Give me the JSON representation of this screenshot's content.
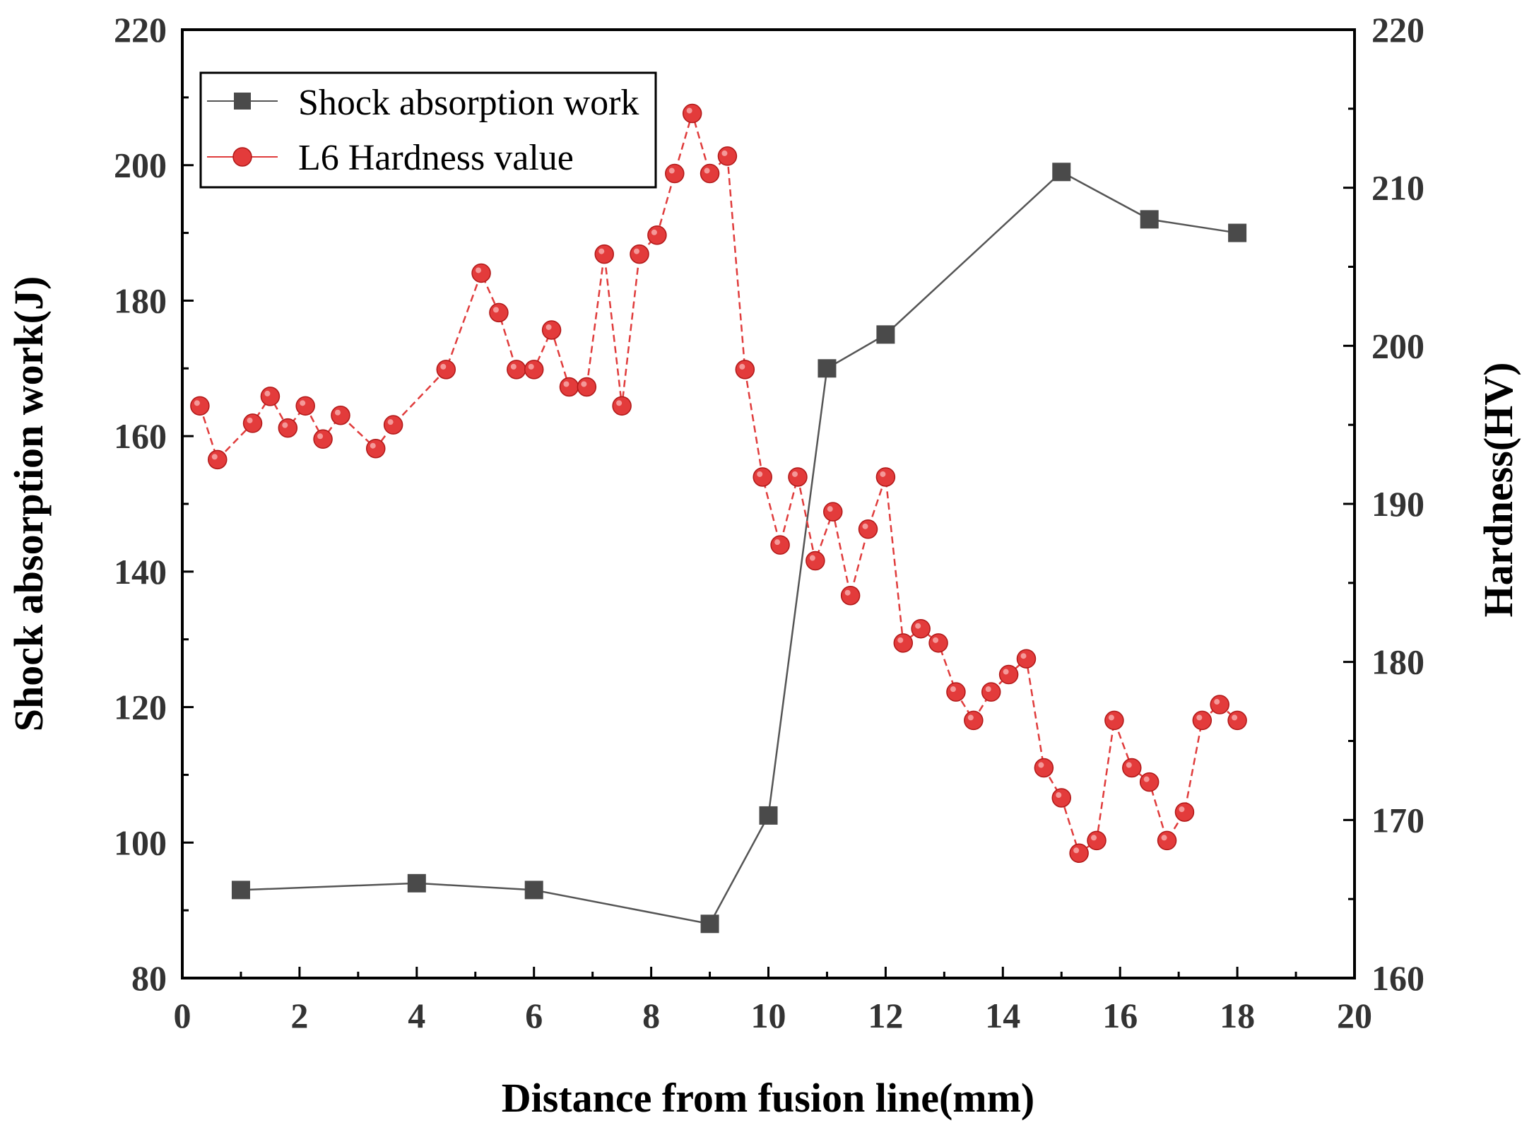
{
  "chart_data": {
    "type": "line",
    "title": "",
    "xlabel": "Distance from fusion line(mm)",
    "ylabel_left": "Shock absorption work(J)",
    "ylabel_right": "Hardness(HV)",
    "xlim": [
      0,
      20
    ],
    "ylim_left": [
      80,
      220
    ],
    "ylim_right": [
      160,
      220
    ],
    "x_ticks": [
      0,
      2,
      4,
      6,
      8,
      10,
      12,
      14,
      16,
      18,
      20
    ],
    "y_left_ticks": [
      80,
      100,
      120,
      140,
      160,
      180,
      200,
      220
    ],
    "y_right_ticks": [
      160,
      170,
      180,
      190,
      200,
      210,
      220
    ],
    "grid": false,
    "legend_position": "top-left",
    "colors": {
      "shock": "#555555",
      "shock_marker": "#4a4a4a",
      "hardness": "#e03c3c",
      "hardness_marker": "#e33b3b",
      "axis": "#000000"
    },
    "series": [
      {
        "name": "Shock absorption work",
        "axis": "left",
        "marker": "square",
        "x": [
          1,
          4,
          6,
          9,
          10,
          11,
          12,
          15,
          16.5,
          18
        ],
        "y": [
          93,
          94,
          93,
          88,
          104,
          170,
          175,
          199,
          192,
          190
        ]
      },
      {
        "name": "L6 Hardness value",
        "axis": "right",
        "marker": "circle",
        "x": [
          0.3,
          0.6,
          1.2,
          1.5,
          1.8,
          2.1,
          2.4,
          2.7,
          3.3,
          3.6,
          4.5,
          5.1,
          5.4,
          5.7,
          6.0,
          6.3,
          6.6,
          6.9,
          7.2,
          7.5,
          7.8,
          8.1,
          8.4,
          8.7,
          9.0,
          9.3,
          9.6,
          9.9,
          10.2,
          10.5,
          10.8,
          11.1,
          11.4,
          11.7,
          12.0,
          12.3,
          12.6,
          12.9,
          13.2,
          13.5,
          13.8,
          14.1,
          14.4,
          14.7,
          15.0,
          15.3,
          15.6,
          15.9,
          16.2,
          16.5,
          16.8,
          17.1,
          17.4,
          17.7,
          18.0
        ],
        "y": [
          196.2,
          192.8,
          195.1,
          196.8,
          194.8,
          196.2,
          194.1,
          195.6,
          193.5,
          195.0,
          198.5,
          204.6,
          202.1,
          198.5,
          198.5,
          201.0,
          197.4,
          197.4,
          205.8,
          196.2,
          205.8,
          207.0,
          210.9,
          214.7,
          210.9,
          212.0,
          198.5,
          191.7,
          187.4,
          191.7,
          186.4,
          189.5,
          184.2,
          188.4,
          191.7,
          181.2,
          182.1,
          181.2,
          178.1,
          176.3,
          178.1,
          179.2,
          180.2,
          173.3,
          171.4,
          167.9,
          168.7,
          176.3,
          173.3,
          172.4,
          168.7,
          170.5,
          176.3,
          177.3,
          176.3
        ]
      }
    ]
  }
}
